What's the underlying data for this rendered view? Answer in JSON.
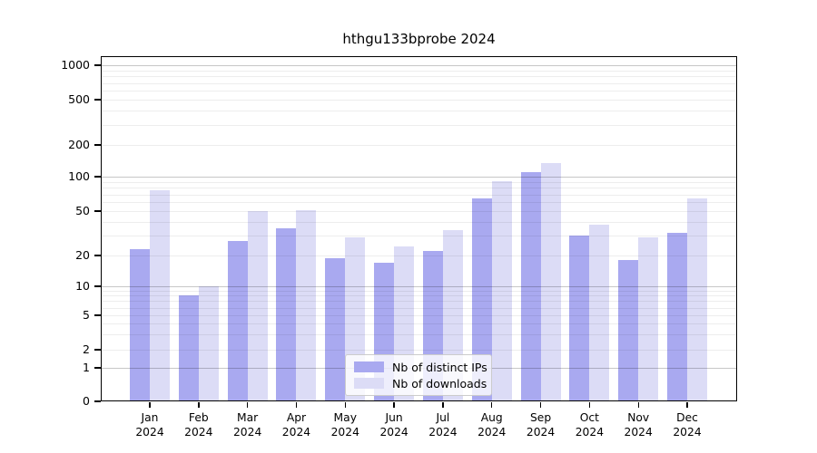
{
  "chart_data": {
    "type": "bar",
    "title": "hthgu133bprobe 2024",
    "categories": [
      {
        "month": "Jan",
        "year": "2024"
      },
      {
        "month": "Feb",
        "year": "2024"
      },
      {
        "month": "Mar",
        "year": "2024"
      },
      {
        "month": "Apr",
        "year": "2024"
      },
      {
        "month": "May",
        "year": "2024"
      },
      {
        "month": "Jun",
        "year": "2024"
      },
      {
        "month": "Jul",
        "year": "2024"
      },
      {
        "month": "Aug",
        "year": "2024"
      },
      {
        "month": "Sep",
        "year": "2024"
      },
      {
        "month": "Oct",
        "year": "2024"
      },
      {
        "month": "Nov",
        "year": "2024"
      },
      {
        "month": "Dec",
        "year": "2024"
      }
    ],
    "series": [
      {
        "name": "Nb of distinct IPs",
        "color": "#a9a9f0",
        "values": [
          23,
          8,
          27,
          35,
          19,
          17,
          22,
          64,
          110,
          30,
          18,
          32
        ]
      },
      {
        "name": "Nb of downloads",
        "color": "#dcdcf6",
        "values": [
          76,
          10,
          50,
          51,
          29,
          24,
          34,
          92,
          135,
          38,
          29,
          65
        ]
      }
    ],
    "yticks": [
      0,
      1,
      2,
      5,
      10,
      20,
      50,
      100,
      200,
      500,
      1000
    ],
    "ylim": [
      0,
      1000
    ],
    "xlabel": "",
    "ylabel": "",
    "scale": "log-like",
    "grid": true,
    "legend_position": "lower-center-inside"
  }
}
